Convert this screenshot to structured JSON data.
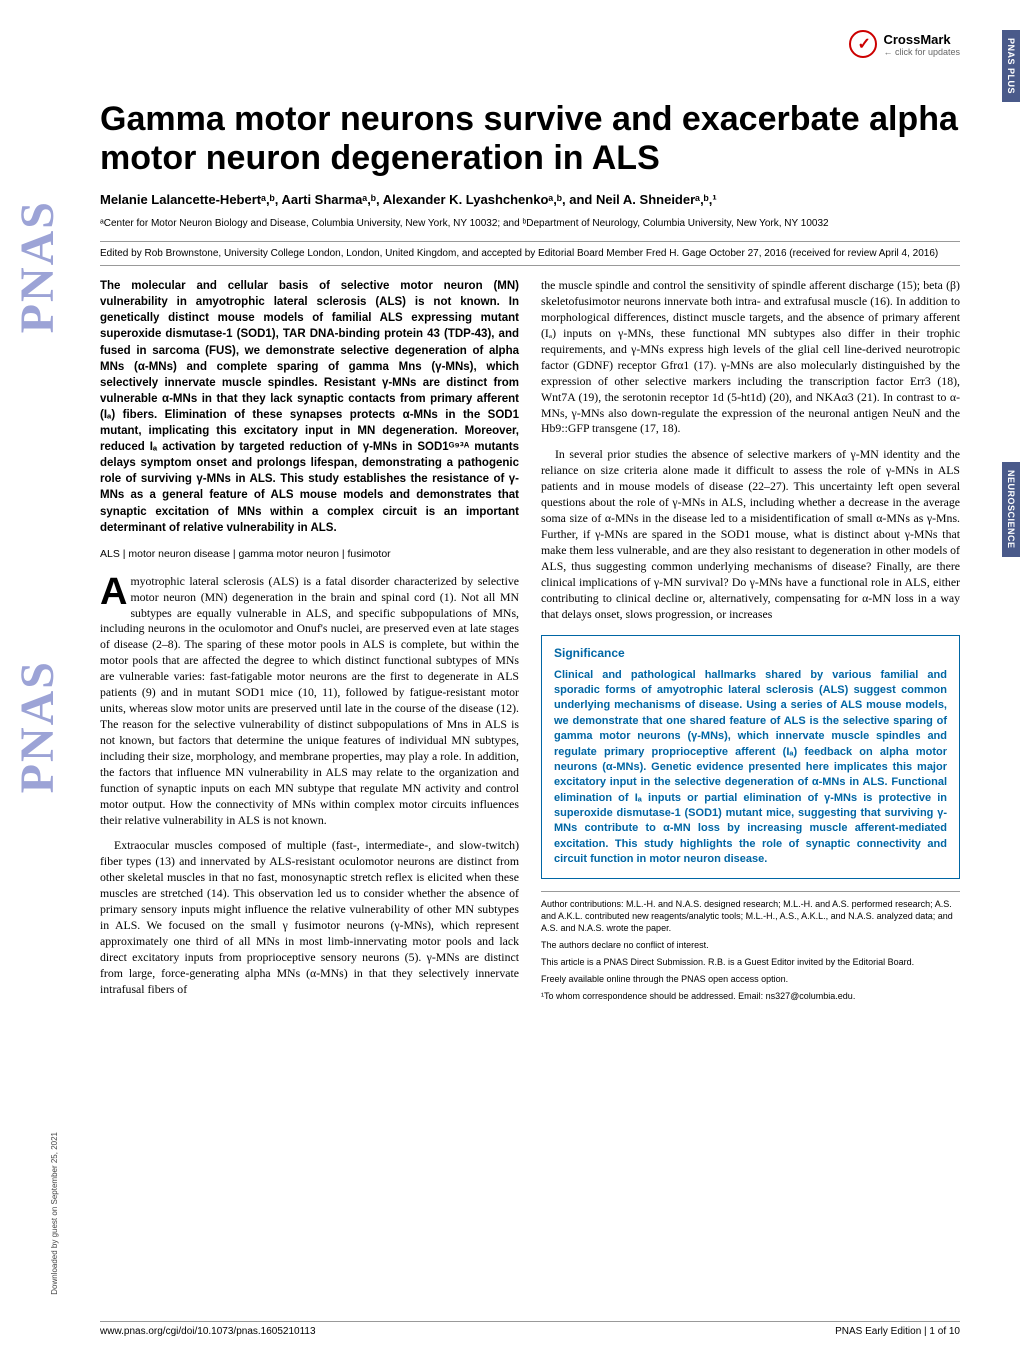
{
  "crossmark": {
    "label": "CrossMark",
    "sub": "← click for updates"
  },
  "sidebar": {
    "pnas": "PNAS PNAS",
    "tab1": "PNAS PLUS",
    "tab2": "NEUROSCIENCE"
  },
  "title": "Gamma motor neurons survive and exacerbate alpha motor neuron degeneration in ALS",
  "authors": "Melanie Lalancette-Hebertᵃ,ᵇ, Aarti Sharmaᵃ,ᵇ, Alexander K. Lyashchenkoᵃ,ᵇ, and Neil A. Shneiderᵃ,ᵇ,¹",
  "affiliations": "ᵃCenter for Motor Neuron Biology and Disease, Columbia University, New York, NY 10032; and ᵇDepartment of Neurology, Columbia University, New York, NY 10032",
  "edited": "Edited by Rob Brownstone, University College London, London, United Kingdom, and accepted by Editorial Board Member Fred H. Gage October 27, 2016 (received for review April 4, 2016)",
  "abstract": "The molecular and cellular basis of selective motor neuron (MN) vulnerability in amyotrophic lateral sclerosis (ALS) is not known. In genetically distinct mouse models of familial ALS expressing mutant superoxide dismutase-1 (SOD1), TAR DNA-binding protein 43 (TDP-43), and fused in sarcoma (FUS), we demonstrate selective degeneration of alpha MNs (α-MNs) and complete sparing of gamma Mns (γ-MNs), which selectively innervate muscle spindles. Resistant γ-MNs are distinct from vulnerable α-MNs in that they lack synaptic contacts from primary afferent (Iₐ) fibers. Elimination of these synapses protects α-MNs in the SOD1 mutant, implicating this excitatory input in MN degeneration. Moreover, reduced Iₐ activation by targeted reduction of γ-MNs in SOD1ᴳ⁹³ᴬ mutants delays symptom onset and prolongs lifespan, demonstrating a pathogenic role of surviving γ-MNs in ALS. This study establishes the resistance of γ-MNs as a general feature of ALS mouse models and demonstrates that synaptic excitation of MNs within a complex circuit is an important determinant of relative vulnerability in ALS.",
  "keywords": "ALS | motor neuron disease | gamma motor neuron | fusimotor",
  "body_col1_p1": "myotrophic lateral sclerosis (ALS) is a fatal disorder characterized by selective motor neuron (MN) degeneration in the brain and spinal cord (1). Not all MN subtypes are equally vulnerable in ALS, and specific subpopulations of MNs, including neurons in the oculomotor and Onuf's nuclei, are preserved even at late stages of disease (2–8). The sparing of these motor pools in ALS is complete, but within the motor pools that are affected the degree to which distinct functional subtypes of MNs are vulnerable varies: fast-fatigable motor neurons are the first to degenerate in ALS patients (9) and in mutant SOD1 mice (10, 11), followed by fatigue-resistant motor units, whereas slow motor units are preserved until late in the course of the disease (12). The reason for the selective vulnerability of distinct subpopulations of Mns in ALS is not known, but factors that determine the unique features of individual MN subtypes, including their size, morphology, and membrane properties, may play a role. In addition, the factors that influence MN vulnerability in ALS may relate to the organization and function of synaptic inputs on each MN subtype that regulate MN activity and control motor output. How the connectivity of MNs within complex motor circuits influences their relative vulnerability in ALS is not known.",
  "body_col1_p2": "Extraocular muscles composed of multiple (fast-, intermediate-, and slow-twitch) fiber types (13) and innervated by ALS-resistant oculomotor neurons are distinct from other skeletal muscles in that no fast, monosynaptic stretch reflex is elicited when these muscles are stretched (14). This observation led us to consider whether the absence of primary sensory inputs might influence the relative vulnerability of other MN subtypes in ALS. We focused on the small γ fusimotor neurons (γ-MNs), which represent approximately one third of all MNs in most limb-innervating motor pools and lack direct excitatory inputs from proprioceptive sensory neurons (5). γ-MNs are distinct from large, force-generating alpha MNs (α-MNs) in that they selectively innervate intrafusal fibers of",
  "body_col2_p1": "the muscle spindle and control the sensitivity of spindle afferent discharge (15); beta (β) skeletofusimotor neurons innervate both intra- and extrafusal muscle (16). In addition to morphological differences, distinct muscle targets, and the absence of primary afferent (Iₐ) inputs on γ-MNs, these functional MN subtypes also differ in their trophic requirements, and γ-MNs express high levels of the glial cell line-derived neurotropic factor (GDNF) receptor Gfrα1 (17). γ-MNs are also molecularly distinguished by the expression of other selective markers including the transcription factor Err3 (18), Wnt7A (19), the serotonin receptor 1d (5-ht1d) (20), and NKAα3 (21). In contrast to α-MNs, γ-MNs also down-regulate the expression of the neuronal antigen NeuN and the Hb9::GFP transgene (17, 18).",
  "body_col2_p2": "In several prior studies the absence of selective markers of γ-MN identity and the reliance on size criteria alone made it difficult to assess the role of γ-MNs in ALS patients and in mouse models of disease (22–27). This uncertainty left open several questions about the role of γ-MNs in ALS, including whether a decrease in the average soma size of α-MNs in the disease led to a misidentification of small α-MNs as γ-Mns. Further, if γ-MNs are spared in the SOD1 mouse, what is distinct about γ-MNs that make them less vulnerable, and are they also resistant to degeneration in other models of ALS, thus suggesting common underlying mechanisms of disease? Finally, are there clinical implications of γ-MN survival? Do γ-MNs have a functional role in ALS, either contributing to clinical decline or, alternatively, compensating for α-MN loss in a way that delays onset, slows progression, or increases",
  "significance": {
    "title": "Significance",
    "text": "Clinical and pathological hallmarks shared by various familial and sporadic forms of amyotrophic lateral sclerosis (ALS) suggest common underlying mechanisms of disease. Using a series of ALS mouse models, we demonstrate that one shared feature of ALS is the selective sparing of gamma motor neurons (γ-MNs), which innervate muscle spindles and regulate primary proprioceptive afferent (Iₐ) feedback on alpha motor neurons (α-MNs). Genetic evidence presented here implicates this major excitatory input in the selective degeneration of α-MNs in ALS. Functional elimination of Iₐ inputs or partial elimination of γ-MNs is protective in superoxide dismutase-1 (SOD1) mutant mice, suggesting that surviving γ-MNs contribute to α-MN loss by increasing muscle afferent-mediated excitation. This study highlights the role of synaptic connectivity and circuit function in motor neuron disease."
  },
  "author_contrib": "Author contributions: M.L.-H. and N.A.S. designed research; M.L.-H. and A.S. performed research; A.S. and A.K.L. contributed new reagents/analytic tools; M.L.-H., A.S., A.K.L., and N.A.S. analyzed data; and A.S. and N.A.S. wrote the paper.",
  "conflict": "The authors declare no conflict of interest.",
  "direct_sub": "This article is a PNAS Direct Submission. R.B. is a Guest Editor invited by the Editorial Board.",
  "open_access": "Freely available online through the PNAS open access option.",
  "correspondence": "¹To whom correspondence should be addressed. Email: ns327@columbia.edu.",
  "footer": {
    "doi": "www.pnas.org/cgi/doi/10.1073/pnas.1605210113",
    "page": "PNAS Early Edition | 1 of 10"
  },
  "downloaded": "Downloaded by guest on September 25, 2021",
  "colors": {
    "pnas_blue": "#9ca3d6",
    "tab_blue": "#4a5a8a",
    "sig_blue": "#0066a4",
    "crossmark_red": "#cc0000"
  }
}
